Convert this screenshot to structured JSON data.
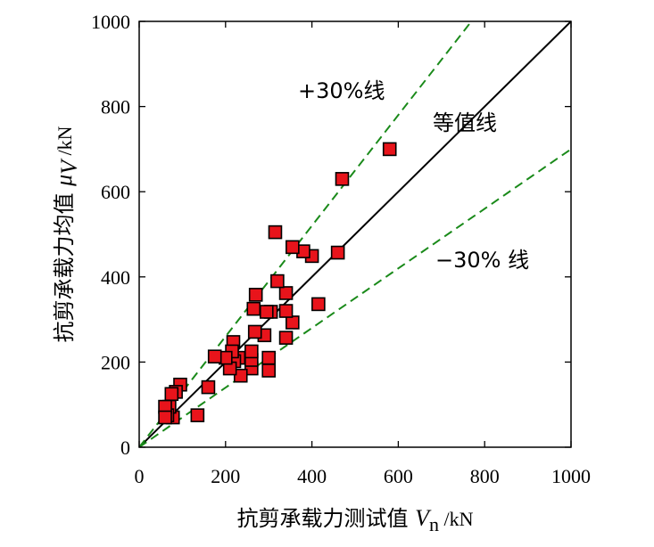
{
  "chart_data": {
    "type": "scatter",
    "xlim": [
      0,
      1000
    ],
    "ylim": [
      0,
      1000
    ],
    "xticks": [
      "0",
      "200",
      "400",
      "600",
      "800",
      "1000"
    ],
    "yticks": [
      "0",
      "200",
      "400",
      "600",
      "800",
      "1000"
    ],
    "xlabel": {
      "prefix": "抗剪承载力测试值 ",
      "var": "V",
      "sub": "n",
      "unit": " /kN"
    },
    "ylabel": {
      "prefix": "抗剪承载力均值 ",
      "var": "μ",
      "sub": "V",
      "unit": " /kN"
    },
    "annotations": {
      "equal_line": "等值线",
      "upper_line": "+30%线",
      "lower_line": "−30% 线"
    },
    "lines": [
      {
        "name": "等值线",
        "slope": 1.0,
        "style": "solid",
        "color": "#000000"
      },
      {
        "name": "+30%线",
        "slope": 1.3,
        "style": "dashed",
        "color": "#1a8a1a"
      },
      {
        "name": "−30% 线",
        "slope": 0.7,
        "style": "dashed",
        "color": "#1a8a1a"
      }
    ],
    "marker": {
      "shape": "square",
      "fill": "#e8141b",
      "edge": "#000000"
    },
    "points": [
      [
        580,
        700
      ],
      [
        470,
        630
      ],
      [
        460,
        457
      ],
      [
        415,
        336
      ],
      [
        400,
        449
      ],
      [
        380,
        460
      ],
      [
        355,
        470
      ],
      [
        355,
        293
      ],
      [
        340,
        257
      ],
      [
        340,
        320
      ],
      [
        340,
        362
      ],
      [
        320,
        390
      ],
      [
        315,
        505
      ],
      [
        305,
        318
      ],
      [
        300,
        180
      ],
      [
        300,
        210
      ],
      [
        295,
        318
      ],
      [
        290,
        263
      ],
      [
        270,
        358
      ],
      [
        268,
        271
      ],
      [
        265,
        325
      ],
      [
        260,
        185
      ],
      [
        260,
        205
      ],
      [
        260,
        225
      ],
      [
        235,
        168
      ],
      [
        230,
        210
      ],
      [
        220,
        202
      ],
      [
        218,
        247
      ],
      [
        215,
        225
      ],
      [
        210,
        185
      ],
      [
        200,
        210
      ],
      [
        175,
        213
      ],
      [
        160,
        141
      ],
      [
        135,
        75
      ],
      [
        95,
        147
      ],
      [
        85,
        130
      ],
      [
        78,
        70
      ],
      [
        75,
        125
      ],
      [
        70,
        95
      ],
      [
        65,
        75
      ],
      [
        60,
        95
      ],
      [
        60,
        70
      ]
    ]
  }
}
